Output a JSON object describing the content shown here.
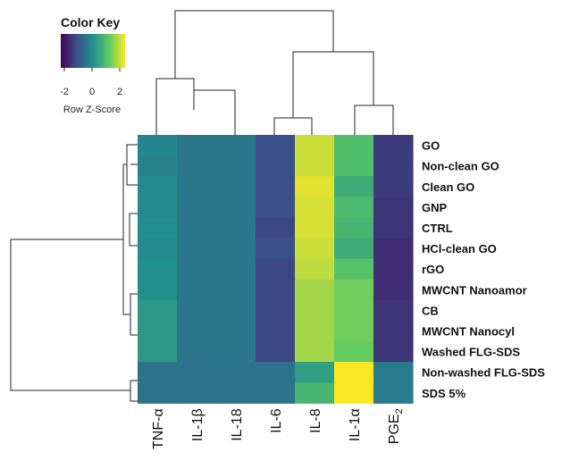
{
  "chart_data": {
    "type": "heatmap",
    "title": "",
    "color_key": {
      "title": "Color Key",
      "label": "Row Z-Score",
      "ticks": [
        "-2",
        "0",
        "2"
      ],
      "range": [
        -2.5,
        2.5
      ],
      "palette": [
        "#440154",
        "#3b528b",
        "#21908d",
        "#5dc963",
        "#fde725"
      ]
    },
    "columns": [
      "TNF-α",
      "IL-1β",
      "IL-18",
      "IL-6",
      "IL-8",
      "IL-1α",
      "PGE2"
    ],
    "column_labels": [
      {
        "base": "TNF-α",
        "sub": ""
      },
      {
        "base": "IL-1β",
        "sub": ""
      },
      {
        "base": "IL-18",
        "sub": ""
      },
      {
        "base": "IL-6",
        "sub": ""
      },
      {
        "base": "IL-8",
        "sub": ""
      },
      {
        "base": "IL-1α",
        "sub": ""
      },
      {
        "base": "PGE",
        "sub": "2"
      }
    ],
    "rows": [
      "GO",
      "Non-clean GO",
      "Clean GO",
      "GNP",
      "CTRL",
      "HCl-clean GO",
      "rGO",
      "MWCNT Nanoamor",
      "CB",
      "MWCNT Nanocyl",
      "Washed FLG-SDS",
      "Non-washed FLG-SDS",
      "SDS 5%"
    ],
    "values": [
      [
        -0.2,
        -0.5,
        -0.5,
        -1.3,
        2.1,
        1.0,
        -1.6
      ],
      [
        -0.3,
        -0.5,
        -0.5,
        -1.3,
        2.1,
        1.0,
        -1.6
      ],
      [
        -0.1,
        -0.5,
        -0.5,
        -1.3,
        2.3,
        0.6,
        -1.6
      ],
      [
        -0.1,
        -0.5,
        -0.5,
        -1.3,
        2.2,
        0.9,
        -1.7
      ],
      [
        0.0,
        -0.5,
        -0.5,
        -1.4,
        2.2,
        0.8,
        -1.7
      ],
      [
        -0.1,
        -0.5,
        -0.5,
        -1.3,
        2.1,
        0.6,
        -1.8
      ],
      [
        0.0,
        -0.5,
        -0.5,
        -1.4,
        2.0,
        1.1,
        -1.8
      ],
      [
        0.0,
        -0.5,
        -0.5,
        -1.4,
        1.8,
        1.4,
        -1.8
      ],
      [
        0.2,
        -0.5,
        -0.5,
        -1.4,
        1.8,
        1.4,
        -1.7
      ],
      [
        0.2,
        -0.5,
        -0.5,
        -1.4,
        1.8,
        1.4,
        -1.7
      ],
      [
        0.2,
        -0.5,
        -0.5,
        -1.4,
        1.8,
        1.3,
        -1.7
      ],
      [
        -0.6,
        -0.6,
        -0.6,
        -0.6,
        0.3,
        2.9,
        -0.4
      ],
      [
        -0.6,
        -0.6,
        -0.6,
        -0.6,
        0.8,
        2.6,
        -0.4
      ]
    ],
    "grid": false,
    "legend": "top-left"
  }
}
